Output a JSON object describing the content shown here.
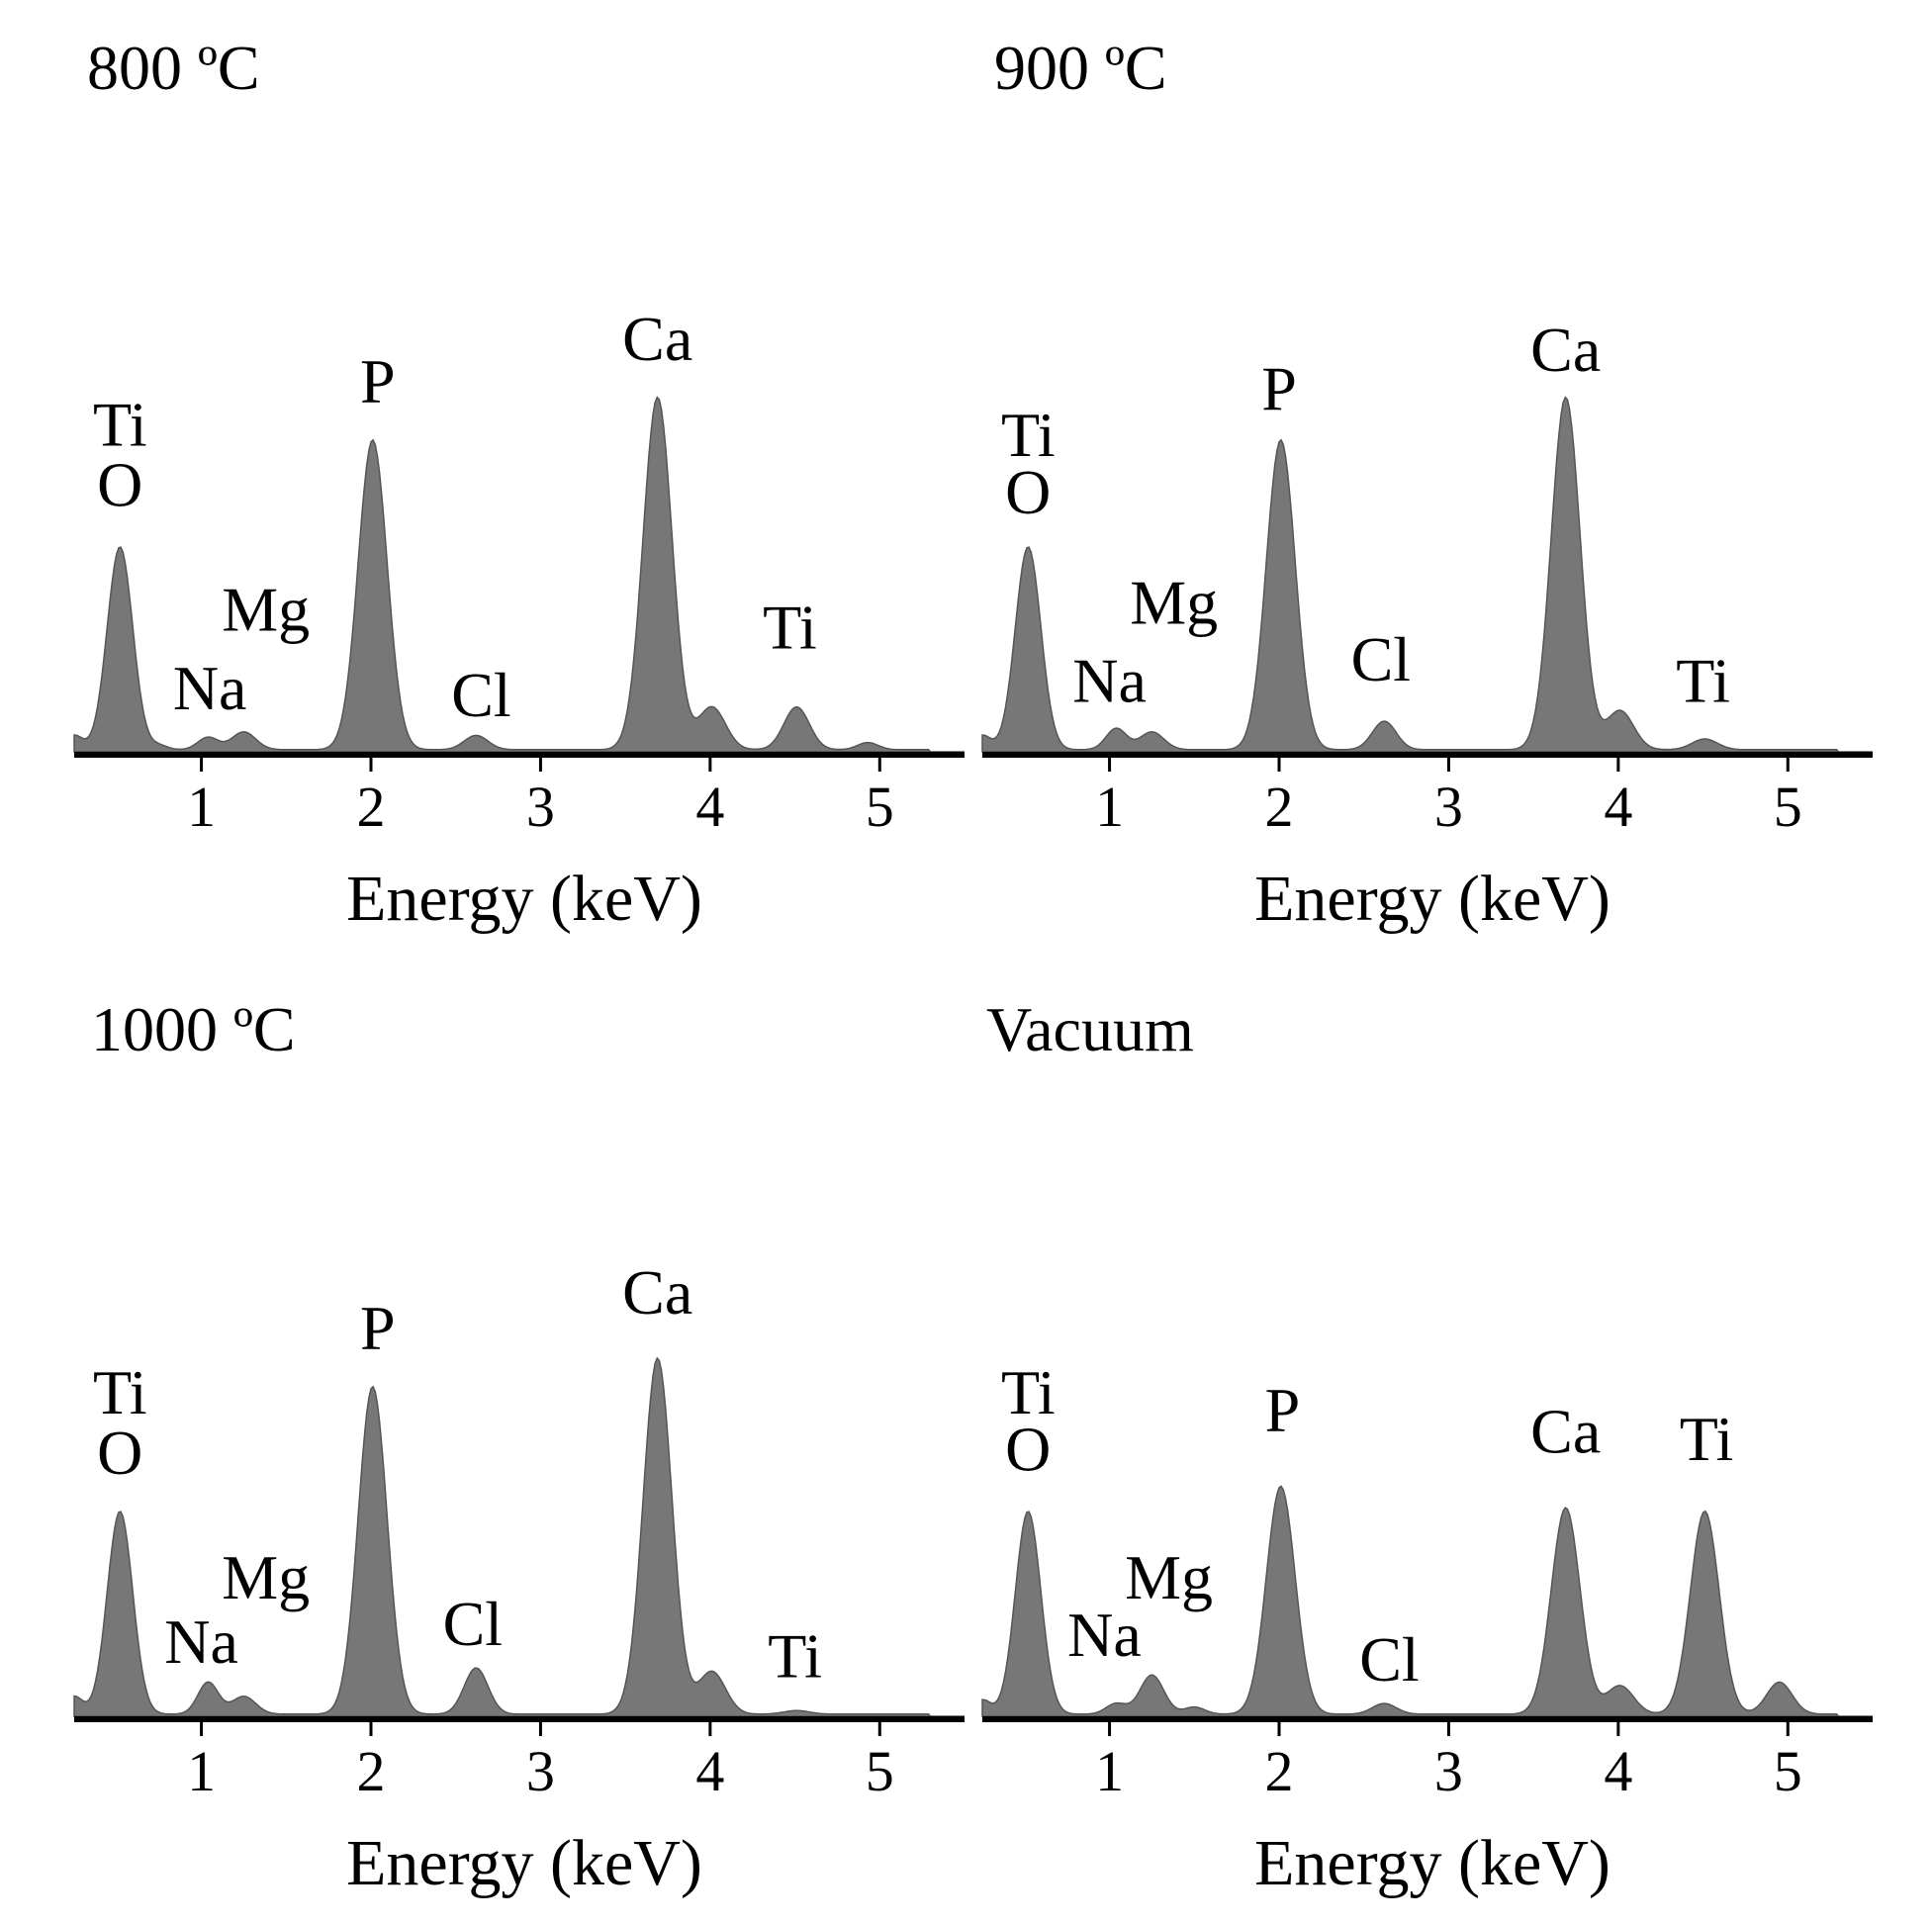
{
  "chart_data": [
    {
      "type": "area",
      "title": "800 ºC",
      "xlabel": "Energy (keV)",
      "ylabel": "",
      "xlim": [
        0.25,
        5.5
      ],
      "ylim": [
        0,
        1.1
      ],
      "xticks": [
        "1",
        "2",
        "3",
        "4",
        "5"
      ],
      "tick_values": [
        1,
        2,
        3,
        4,
        5
      ],
      "peaks": [
        {
          "center": 0.25,
          "height": 0.04,
          "width": 0.05
        },
        {
          "center": 0.52,
          "height": 0.57,
          "width": 0.075
        },
        {
          "center": 0.75,
          "height": 0.012,
          "width": 0.05
        },
        {
          "center": 1.04,
          "height": 0.035,
          "width": 0.06
        },
        {
          "center": 1.25,
          "height": 0.05,
          "width": 0.07
        },
        {
          "center": 2.01,
          "height": 0.87,
          "width": 0.085
        },
        {
          "center": 2.62,
          "height": 0.04,
          "width": 0.07
        },
        {
          "center": 3.69,
          "height": 0.99,
          "width": 0.085
        },
        {
          "center": 4.01,
          "height": 0.12,
          "width": 0.08
        },
        {
          "center": 4.51,
          "height": 0.12,
          "width": 0.075
        },
        {
          "center": 4.93,
          "height": 0.02,
          "width": 0.06
        }
      ],
      "annotations": [
        {
          "text": "Ti",
          "x": 0.52,
          "y": 0.86
        },
        {
          "text": "O",
          "x": 0.52,
          "y": 0.69
        },
        {
          "text": "Na",
          "x": 1.05,
          "y": 0.12
        },
        {
          "text": "Mg",
          "x": 1.38,
          "y": 0.34
        },
        {
          "text": "P",
          "x": 2.04,
          "y": 0.98
        },
        {
          "text": "Cl",
          "x": 2.65,
          "y": 0.1
        },
        {
          "text": "Ca",
          "x": 3.69,
          "y": 1.1
        },
        {
          "text": "Ti",
          "x": 4.47,
          "y": 0.29
        }
      ]
    },
    {
      "type": "area",
      "title": "900 ºC",
      "xlabel": "Energy (keV)",
      "ylabel": "",
      "xlim": [
        0.25,
        5.5
      ],
      "ylim": [
        0,
        1.1
      ],
      "xticks": [
        "1",
        "2",
        "3",
        "4",
        "5"
      ],
      "tick_values": [
        1,
        2,
        3,
        4,
        5
      ],
      "peaks": [
        {
          "center": 0.25,
          "height": 0.04,
          "width": 0.05
        },
        {
          "center": 0.52,
          "height": 0.57,
          "width": 0.075
        },
        {
          "center": 1.04,
          "height": 0.06,
          "width": 0.06
        },
        {
          "center": 1.25,
          "height": 0.05,
          "width": 0.07
        },
        {
          "center": 2.01,
          "height": 0.87,
          "width": 0.085
        },
        {
          "center": 2.62,
          "height": 0.08,
          "width": 0.07
        },
        {
          "center": 3.69,
          "height": 0.99,
          "width": 0.085
        },
        {
          "center": 4.01,
          "height": 0.11,
          "width": 0.08
        },
        {
          "center": 4.51,
          "height": 0.03,
          "width": 0.075
        }
      ],
      "annotations": [
        {
          "text": "Ti",
          "x": 0.52,
          "y": 0.83
        },
        {
          "text": "O",
          "x": 0.52,
          "y": 0.67
        },
        {
          "text": "Na",
          "x": 1.0,
          "y": 0.14
        },
        {
          "text": "Mg",
          "x": 1.38,
          "y": 0.36
        },
        {
          "text": "P",
          "x": 2.0,
          "y": 0.96
        },
        {
          "text": "Cl",
          "x": 2.6,
          "y": 0.2
        },
        {
          "text": "Ca",
          "x": 3.69,
          "y": 1.07
        },
        {
          "text": "Ti",
          "x": 4.5,
          "y": 0.14
        }
      ]
    },
    {
      "type": "area",
      "title": "1000 ºC",
      "xlabel": "Energy (keV)",
      "ylabel": "",
      "xlim": [
        0.25,
        5.5
      ],
      "ylim": [
        0,
        1.1
      ],
      "xticks": [
        "1",
        "2",
        "3",
        "4",
        "5"
      ],
      "tick_values": [
        1,
        2,
        3,
        4,
        5
      ],
      "peaks": [
        {
          "center": 0.25,
          "height": 0.05,
          "width": 0.05
        },
        {
          "center": 0.52,
          "height": 0.57,
          "width": 0.075
        },
        {
          "center": 1.04,
          "height": 0.09,
          "width": 0.06
        },
        {
          "center": 1.25,
          "height": 0.05,
          "width": 0.07
        },
        {
          "center": 2.01,
          "height": 0.92,
          "width": 0.085
        },
        {
          "center": 2.62,
          "height": 0.13,
          "width": 0.07
        },
        {
          "center": 3.69,
          "height": 1.0,
          "width": 0.085
        },
        {
          "center": 4.01,
          "height": 0.12,
          "width": 0.08
        },
        {
          "center": 4.51,
          "height": 0.01,
          "width": 0.075
        }
      ],
      "annotations": [
        {
          "text": "Ti",
          "x": 0.52,
          "y": 0.85
        },
        {
          "text": "O",
          "x": 0.52,
          "y": 0.68
        },
        {
          "text": "Na",
          "x": 1.0,
          "y": 0.15
        },
        {
          "text": "Mg",
          "x": 1.38,
          "y": 0.33
        },
        {
          "text": "P",
          "x": 2.04,
          "y": 1.03
        },
        {
          "text": "Cl",
          "x": 2.6,
          "y": 0.2
        },
        {
          "text": "Ca",
          "x": 3.69,
          "y": 1.13
        },
        {
          "text": "Ti",
          "x": 4.5,
          "y": 0.11
        }
      ]
    },
    {
      "type": "area",
      "title": "Vacuum",
      "xlabel": "Energy (keV)",
      "ylabel": "",
      "xlim": [
        0.25,
        5.5
      ],
      "ylim": [
        0,
        1.1
      ],
      "xticks": [
        "1",
        "2",
        "3",
        "4",
        "5"
      ],
      "tick_values": [
        1,
        2,
        3,
        4,
        5
      ],
      "peaks": [
        {
          "center": 0.25,
          "height": 0.04,
          "width": 0.05
        },
        {
          "center": 0.52,
          "height": 0.57,
          "width": 0.075
        },
        {
          "center": 1.04,
          "height": 0.03,
          "width": 0.06
        },
        {
          "center": 1.25,
          "height": 0.11,
          "width": 0.07
        },
        {
          "center": 1.5,
          "height": 0.02,
          "width": 0.06
        },
        {
          "center": 2.01,
          "height": 0.64,
          "width": 0.085
        },
        {
          "center": 2.62,
          "height": 0.03,
          "width": 0.07
        },
        {
          "center": 3.69,
          "height": 0.58,
          "width": 0.085
        },
        {
          "center": 4.01,
          "height": 0.08,
          "width": 0.08
        },
        {
          "center": 4.51,
          "height": 0.57,
          "width": 0.085
        },
        {
          "center": 4.95,
          "height": 0.09,
          "width": 0.075
        }
      ],
      "annotations": [
        {
          "text": "Ti",
          "x": 0.52,
          "y": 0.85
        },
        {
          "text": "O",
          "x": 0.52,
          "y": 0.69
        },
        {
          "text": "Na",
          "x": 0.97,
          "y": 0.17
        },
        {
          "text": "Mg",
          "x": 1.35,
          "y": 0.33
        },
        {
          "text": "P",
          "x": 2.02,
          "y": 0.8
        },
        {
          "text": "Cl",
          "x": 2.65,
          "y": 0.1
        },
        {
          "text": "Ca",
          "x": 3.69,
          "y": 0.74
        },
        {
          "text": "Ti",
          "x": 4.52,
          "y": 0.72
        }
      ]
    }
  ]
}
